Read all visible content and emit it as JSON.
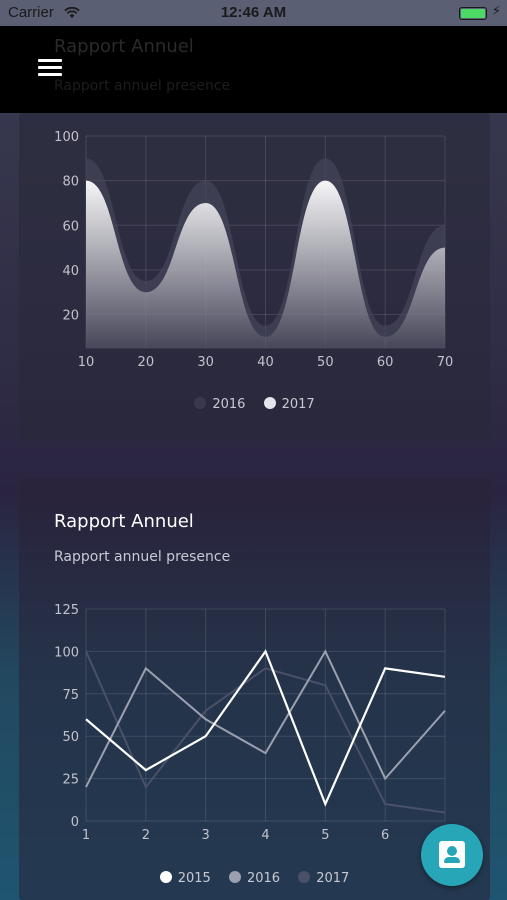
{
  "status_bar": {
    "carrier": "Carrier",
    "time": "12:46 AM"
  },
  "header": {
    "ghost_title": "Rapport Annuel",
    "ghost_subtitle": "Rapport annuel presence"
  },
  "icons": {
    "menu": "hamburger-menu-icon",
    "fab": "contact-card-icon",
    "wifi": "wifi-icon",
    "battery": "battery-icon"
  },
  "colors": {
    "fab": "#27a6b8",
    "card_bg": "#2a2a3a",
    "series_2015": "#ffffff",
    "series_2016": "#9aa0b0",
    "series_2017": "#4a5068"
  },
  "card1": {
    "chart_data": {
      "type": "area",
      "x": [
        10,
        20,
        30,
        40,
        50,
        60,
        70
      ],
      "xlim": [
        10,
        70
      ],
      "ylim": [
        5,
        100
      ],
      "y_ticks": [
        20,
        40,
        60,
        80,
        100
      ],
      "series": [
        {
          "name": "2016",
          "values": [
            90,
            35,
            80,
            15,
            90,
            15,
            60
          ],
          "color": "#3a3a4e"
        },
        {
          "name": "2017",
          "values": [
            80,
            30,
            70,
            10,
            80,
            10,
            50
          ],
          "color": "#ffffff"
        }
      ],
      "legend": [
        "2016",
        "2017"
      ],
      "legend_position": "bottom",
      "grid": true
    }
  },
  "card2": {
    "title": "Rapport Annuel",
    "subtitle": "Rapport annuel presence",
    "chart_data": {
      "type": "line",
      "x": [
        1,
        2,
        3,
        4,
        5,
        6,
        7
      ],
      "x_tick_labels": [
        "1",
        "2",
        "3",
        "4",
        "5",
        "6"
      ],
      "ylim": [
        0,
        125
      ],
      "y_ticks": [
        0,
        25,
        50,
        75,
        100,
        125
      ],
      "series": [
        {
          "name": "2015",
          "values": [
            60,
            30,
            50,
            100,
            10,
            90,
            85
          ],
          "color": "#ffffff"
        },
        {
          "name": "2016",
          "values": [
            20,
            90,
            60,
            40,
            100,
            25,
            65
          ],
          "color": "#9aa0b0"
        },
        {
          "name": "2017",
          "values": [
            100,
            20,
            65,
            90,
            80,
            10,
            5
          ],
          "color": "#4a5068"
        }
      ],
      "legend": [
        "2015",
        "2016",
        "2017"
      ],
      "legend_position": "bottom",
      "grid": true
    }
  }
}
